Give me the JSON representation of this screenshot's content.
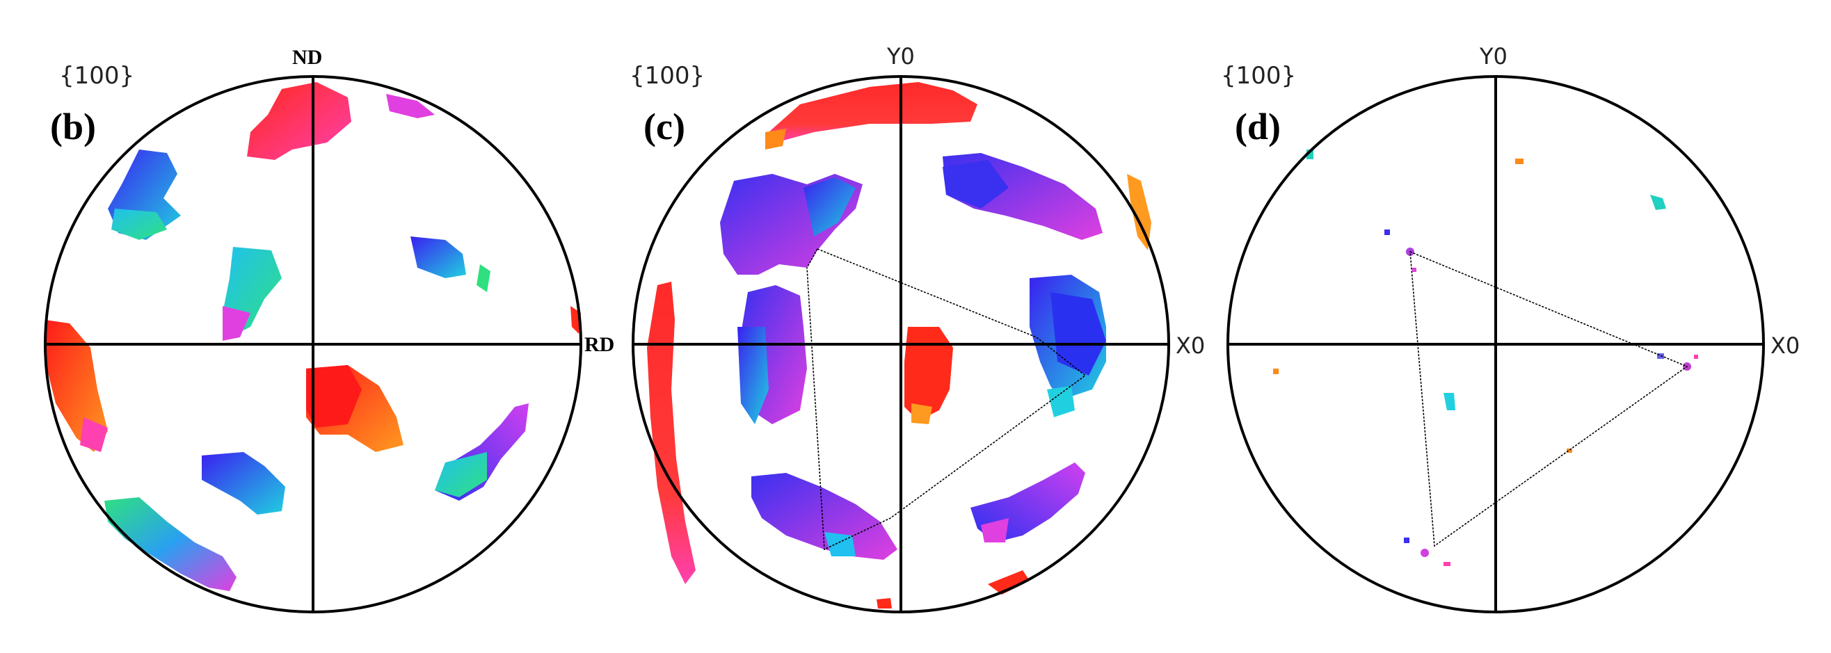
{
  "panels": [
    {
      "id": "b",
      "plane_label": "{100}",
      "letter": "(b)",
      "top_axis": "ND",
      "right_axis": "RD"
    },
    {
      "id": "c",
      "plane_label": "{100}",
      "letter": "(c)",
      "top_axis": "Y0",
      "right_axis": "X0"
    },
    {
      "id": "d",
      "plane_label": "{100}",
      "letter": "(d)",
      "top_axis": "Y0",
      "right_axis": "X0"
    }
  ],
  "colors": {
    "red": "#ff2a1a",
    "orange": "#ff8a1a",
    "magenta": "#e040e0",
    "pink": "#ff40b0",
    "blue": "#3030f0",
    "indigo": "#6a20ff",
    "cyan": "#20d0e0",
    "green": "#30e080",
    "teal": "#20b0b0"
  }
}
